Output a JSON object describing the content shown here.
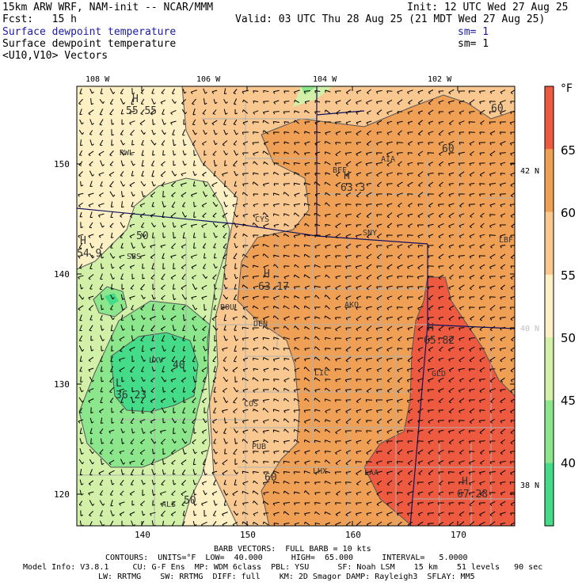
{
  "header": {
    "line1_left": "15km ARW WRF, NAM-init -- NCAR/MMM",
    "line1_right": "Init: 12 UTC Wed 27 Aug 25",
    "line2_left": "Fcst:   15 h",
    "line2_right": "Valid: 03 UTC Thu 28 Aug 25 (21 MDT Wed 27 Aug 25)",
    "line3_left": "Surface dewpoint temperature",
    "line3_right": "sm= 1",
    "line4_left": "Surface dewpoint temperature",
    "line4_right": "sm= 1",
    "line5_left": "<U10,V10> Vectors"
  },
  "lon_labels": [
    "108 W",
    "106 W",
    "104 W",
    "102 W"
  ],
  "lat_labels": [
    "42 N",
    "40 N",
    "38 N"
  ],
  "grid_x_ticks": [
    "140",
    "150",
    "160",
    "170"
  ],
  "grid_y_ticks": [
    "150",
    "140",
    "130",
    "120"
  ],
  "colorbar": {
    "unit": "°F",
    "labels": [
      "65",
      "60",
      "55",
      "50",
      "45",
      "40"
    ],
    "colors": [
      "#ee5a40",
      "#f0a055",
      "#f8c890",
      "#fdf0c4",
      "#d2f0a8",
      "#8ce68c",
      "#44dc88"
    ]
  },
  "stations": [
    "RWL",
    "BFF",
    "AIA",
    "CYS",
    "SNY",
    "LBF",
    "SBS",
    "AKO",
    "BOU",
    "DEN",
    "LIC",
    "GLD",
    "LXV",
    "COS",
    "PUB",
    "LHX",
    "LAA",
    "ALS"
  ],
  "extrema": [
    {
      "mark": "H",
      "value": "55.55"
    },
    {
      "mark": "H",
      "value": "63.3"
    },
    {
      "mark": "H",
      "value": "54.9"
    },
    {
      "mark": "H",
      "value": "63.17"
    },
    {
      "mark": "H",
      "value": "65.82"
    },
    {
      "mark": "L",
      "value": "36.23"
    },
    {
      "mark": "H",
      "value": "67.28"
    }
  ],
  "contour_labels": [
    "60",
    "60",
    "50",
    "40",
    "60",
    "50"
  ],
  "footer": {
    "line1": "BARB VECTORS:  FULL BARB = 10 kts",
    "line2": "CONTOURS:  UNITS=°F  LOW=  40.000      HIGH=  65.000      INTERVAL=   5.0000",
    "line3": "Model Info: V3.8.1     CU: G-F Ens  MP: WDM 6class  PBL: YSU      SF: Noah LSM    15 km    51 levels   90 sec",
    "line4": "LW: RRTMG    SW: RRTMG  DIFF: full    KM: 2D Smagor DAMP: Rayleigh3  SFLAY: MM5"
  }
}
